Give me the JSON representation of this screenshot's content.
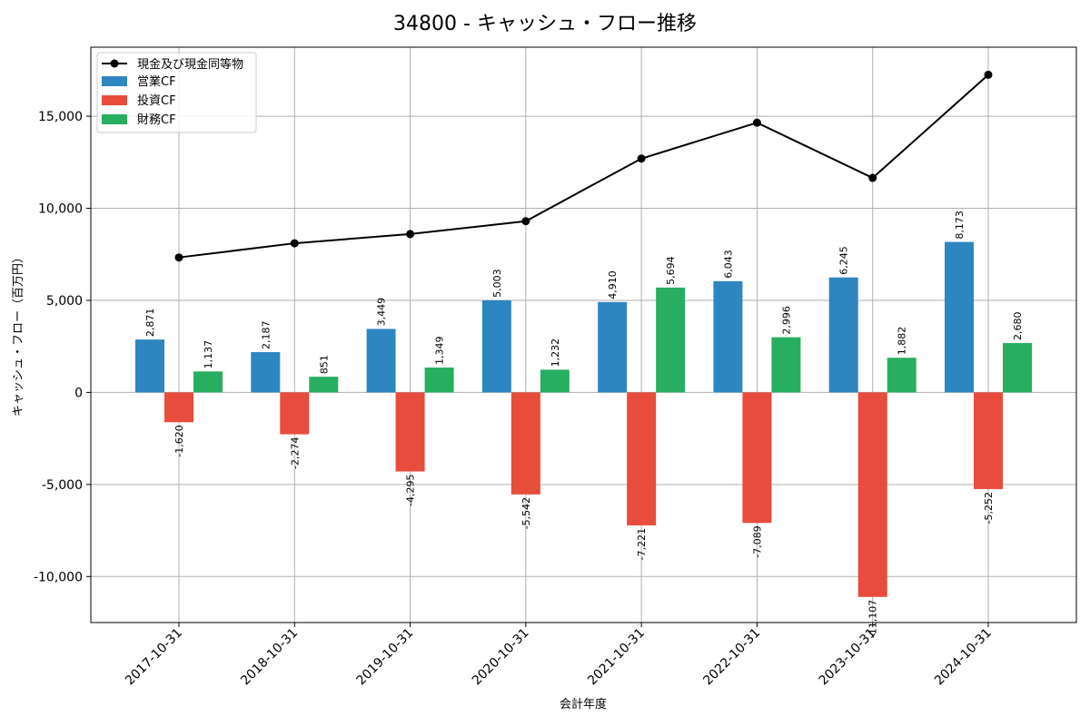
{
  "chart_data": {
    "type": "bar+line",
    "title": "34800 - キャッシュ・フロー推移",
    "xlabel": "会計年度",
    "ylabel": "キャッシュ・フロー（百万円）",
    "categories": [
      "2017-10-31",
      "2018-10-31",
      "2019-10-31",
      "2020-10-31",
      "2021-10-31",
      "2022-10-31",
      "2023-10-31",
      "2024-10-31"
    ],
    "ylim": [
      -12500,
      18750
    ],
    "yticks": [
      -10000,
      -5000,
      0,
      5000,
      10000,
      15000
    ],
    "ytick_labels": [
      "-10,000",
      "-5,000",
      "0",
      "5,000",
      "10,000",
      "15,000"
    ],
    "grid": true,
    "legend_position": "top-left",
    "series": [
      {
        "name": "現金及び現金同等物",
        "kind": "line",
        "color": "#000000",
        "values": [
          7330,
          8100,
          8600,
          9300,
          12700,
          14650,
          11650,
          17250
        ]
      },
      {
        "name": "営業CF",
        "kind": "bar",
        "color": "#2e86c1",
        "values": [
          2871,
          2187,
          3449,
          5003,
          4910,
          6043,
          6245,
          8173
        ],
        "labels": [
          "2,871",
          "2,187",
          "3,449",
          "5,003",
          "4,910",
          "6,043",
          "6,245",
          "8,173"
        ]
      },
      {
        "name": "投資CF",
        "kind": "bar",
        "color": "#e74c3c",
        "values": [
          -1620,
          -2274,
          -4295,
          -5542,
          -7221,
          -7089,
          -11107,
          -5252
        ],
        "labels": [
          "-1,620",
          "-2,274",
          "-4,295",
          "-5,542",
          "-7,221",
          "-7,089",
          "-11,107",
          "-5,252"
        ]
      },
      {
        "name": "財務CF",
        "kind": "bar",
        "color": "#27ae60",
        "values": [
          1137,
          851,
          1349,
          1232,
          5694,
          2996,
          1882,
          2680
        ],
        "labels": [
          "1,137",
          "851",
          "1,349",
          "1,232",
          "5,694",
          "2,996",
          "1,882",
          "2,680"
        ]
      }
    ]
  }
}
